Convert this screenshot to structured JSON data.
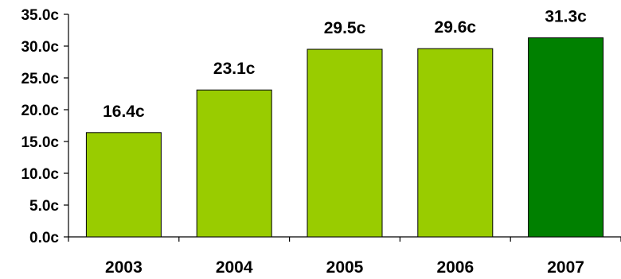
{
  "chart_data": {
    "type": "bar",
    "categories": [
      "2003",
      "2004",
      "2005",
      "2006",
      "2007"
    ],
    "values": [
      16.4,
      23.1,
      29.5,
      29.6,
      31.3
    ],
    "data_labels": [
      "16.4c",
      "23.1c",
      "29.5c",
      "29.6c",
      "31.3c"
    ],
    "y_ticks": [
      "0.0c",
      "5.0c",
      "10.0c",
      "15.0c",
      "20.0c",
      "25.0c",
      "30.0c",
      "35.0c"
    ],
    "y_tick_values": [
      0,
      5,
      10,
      15,
      20,
      25,
      30,
      35
    ],
    "ylim": [
      0,
      35
    ],
    "title": "",
    "xlabel": "",
    "ylabel": "",
    "grid": false,
    "legend": "none",
    "colors": {
      "default_bar": "#99cc00",
      "highlight_bar": "#008000",
      "highlight_category": "2007"
    }
  }
}
